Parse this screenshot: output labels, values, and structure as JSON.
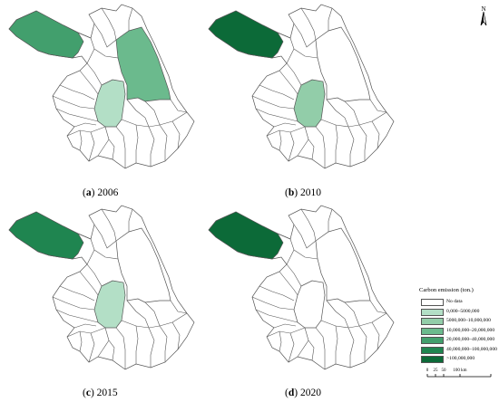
{
  "colors": {
    "no_data": "#ffffff",
    "c1": "#b3dfc6",
    "c2": "#92cda9",
    "c3": "#6bba8d",
    "c4": "#429f6d",
    "c5": "#1f8550",
    "c6": "#0c6a38",
    "border": "#555555"
  },
  "panels": [
    {
      "letter": "a",
      "year": "2006",
      "fills": {
        "xuzhou": "c4",
        "huaian_south": "c1",
        "yancheng": "c3"
      }
    },
    {
      "letter": "b",
      "year": "2010",
      "fills": {
        "xuzhou": "c6",
        "huaian_south": "c2"
      }
    },
    {
      "letter": "c",
      "year": "2015",
      "fills": {
        "xuzhou": "c5",
        "huaian_south": "c1"
      }
    },
    {
      "letter": "d",
      "year": "2020",
      "fills": {
        "xuzhou": "c6"
      }
    }
  ],
  "legend": {
    "title": "Carbon emission (ton.)",
    "items": [
      {
        "label": "No data",
        "color_key": "no_data"
      },
      {
        "label": "0,000–5000,000",
        "color_key": "c1"
      },
      {
        "label": "5000,000–10,000,000",
        "color_key": "c2"
      },
      {
        "label": "10,000,000–20,000,000",
        "color_key": "c3"
      },
      {
        "label": "20,000,000–40,000,000",
        "color_key": "c4"
      },
      {
        "label": "40,000,000–100,000,000",
        "color_key": "c5"
      },
      {
        "label": ">100,000,000",
        "color_key": "c6"
      }
    ]
  },
  "north_label": "N",
  "scale": {
    "ticks": [
      "0",
      "25",
      "50",
      "100 km"
    ]
  }
}
